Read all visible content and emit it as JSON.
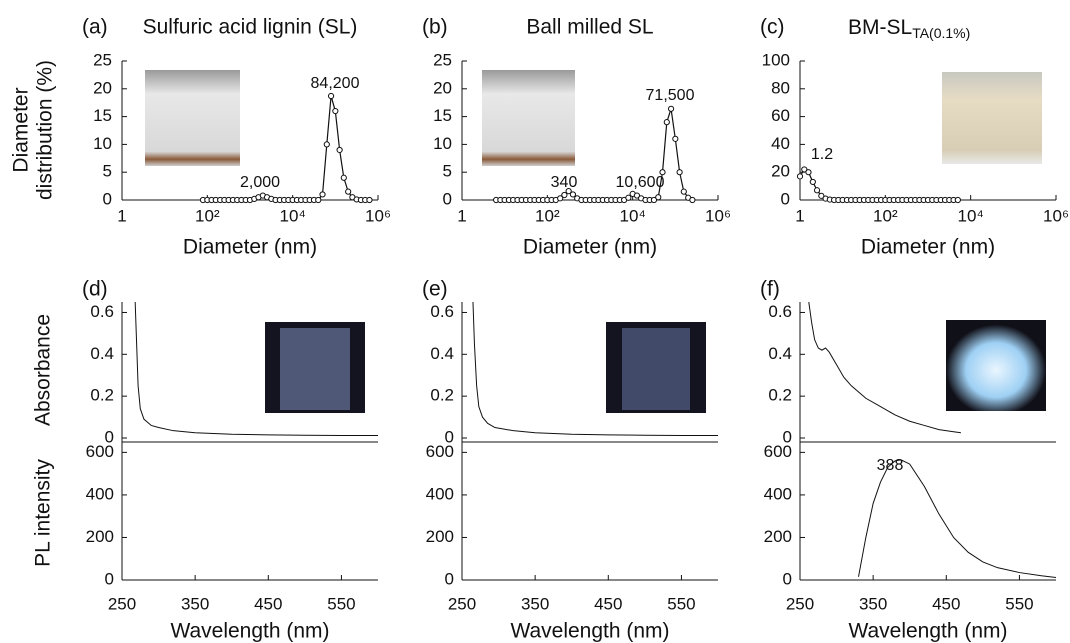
{
  "chart_data": [
    {
      "type": "dls",
      "label": "(a)",
      "title": "Sulfuric acid lignin (SL)",
      "xlabel": "Diameter (nm)",
      "ylabel": [
        "Diameter",
        "distribution (%)"
      ],
      "xscale": "log",
      "xlim": [
        1,
        1000000
      ],
      "xticks": [
        1,
        {
          "value": 100,
          "label": "10²"
        },
        {
          "value": 10000,
          "label": "10⁴"
        },
        {
          "value": 1000000,
          "label": "10⁶"
        }
      ],
      "ylim": [
        0,
        25
      ],
      "yticks": [
        0,
        5,
        10,
        15,
        20,
        25
      ],
      "color": "#111111",
      "x": [
        79,
        100,
        126,
        158,
        200,
        251,
        316,
        398,
        501,
        631,
        794,
        1000,
        1260,
        1580,
        2000,
        2510,
        3160,
        3980,
        5010,
        6310,
        7940,
        10000,
        12600,
        15800,
        20000,
        25100,
        31600,
        39800,
        50100,
        63100,
        79400,
        100000,
        126000,
        158000,
        200000,
        251000,
        316000,
        398000,
        501000,
        631000
      ],
      "values": [
        0,
        0,
        0,
        0,
        0,
        0,
        0,
        0,
        0,
        0,
        0,
        0,
        0.2,
        0.5,
        0.8,
        0.5,
        0.2,
        0,
        0,
        0,
        0,
        0,
        0,
        0,
        0,
        0,
        0,
        0,
        1,
        10,
        18.7,
        16,
        9,
        4,
        1.5,
        0.5,
        0.1,
        0,
        0,
        0
      ],
      "annotations": [
        "2,000",
        "84,200"
      ]
    },
    {
      "type": "dls",
      "label": "(b)",
      "title": "Ball milled SL",
      "xlabel": "Diameter (nm)",
      "xscale": "log",
      "xlim": [
        1,
        1000000
      ],
      "xticks": [
        1,
        {
          "value": 100,
          "label": "10²"
        },
        {
          "value": 10000,
          "label": "10⁴"
        },
        {
          "value": 1000000,
          "label": "10⁶"
        }
      ],
      "ylim": [
        0,
        25
      ],
      "yticks": [
        0,
        5,
        10,
        15,
        20,
        25
      ],
      "color": "#111111",
      "x": [
        6.31,
        7.94,
        10,
        12.6,
        15.8,
        20,
        25.1,
        31.6,
        39.8,
        50.1,
        63.1,
        79.4,
        100,
        126,
        158,
        200,
        251,
        316,
        398,
        501,
        631,
        794,
        1000,
        1260,
        1580,
        2000,
        2510,
        3160,
        3980,
        5010,
        6310,
        7940,
        10000,
        12600,
        15800,
        20000,
        25100,
        31600,
        39800,
        50100,
        63100,
        79400,
        100000,
        126000,
        158000,
        200000,
        251000
      ],
      "values": [
        0,
        0,
        0,
        0,
        0,
        0,
        0,
        0,
        0,
        0,
        0,
        0,
        0,
        0,
        0,
        0.3,
        0.9,
        1.6,
        1.0,
        0.3,
        0,
        0,
        0,
        0,
        0,
        0,
        0,
        0,
        0,
        0,
        0,
        0.4,
        1.1,
        0.8,
        0.3,
        0,
        0,
        0,
        0.5,
        5,
        14,
        16.4,
        11,
        5,
        1.5,
        0.4,
        0
      ],
      "annotations": [
        "340",
        "10,600",
        "71,500"
      ]
    },
    {
      "type": "dls",
      "label": "(c)",
      "title": "BM-SL",
      "title_subscript": "TA(0.1%)",
      "xlabel": "Diameter (nm)",
      "xscale": "log",
      "xlim": [
        1,
        1000000
      ],
      "xticks": [
        1,
        {
          "value": 100,
          "label": "10²"
        },
        {
          "value": 10000,
          "label": "10⁴"
        },
        {
          "value": 1000000,
          "label": "10⁶"
        }
      ],
      "ylim": [
        0,
        100
      ],
      "yticks": [
        0,
        20,
        40,
        60,
        80,
        100
      ],
      "color": "#111111",
      "x": [
        1,
        1.26,
        1.58,
        2,
        2.51,
        3.16,
        3.98,
        5.01,
        6.31,
        7.94,
        10,
        12.6,
        15.8,
        20,
        25.1,
        31.6,
        39.8,
        50.1,
        63.1,
        79.4,
        100,
        126,
        158,
        200,
        251,
        316,
        398,
        501,
        631,
        794,
        1000,
        1260,
        1580,
        2000,
        2510,
        3160,
        3980,
        5010
      ],
      "values": [
        17,
        22,
        20,
        13,
        7,
        3,
        1,
        0.3,
        0,
        0,
        0,
        0,
        0,
        0,
        0,
        0,
        0,
        0,
        0,
        0,
        0,
        0,
        0,
        0,
        0,
        0,
        0,
        0,
        0,
        0,
        0,
        0,
        0,
        0,
        0,
        0,
        0,
        0
      ],
      "annotations": [
        "1.2"
      ]
    },
    {
      "type": "spectra",
      "label": "(d)",
      "xlabel": "Wavelength (nm)",
      "xlim": [
        250,
        600
      ],
      "xticks": [
        250,
        350,
        450,
        550
      ],
      "color": "#111111",
      "panels": [
        {
          "ylabel": "Absorbance",
          "ylim": [
            0,
            0.65
          ],
          "yticks": [
            0,
            0.2,
            0.4,
            0.6
          ],
          "x": [
            268,
            270,
            272,
            275,
            280,
            290,
            300,
            320,
            350,
            400,
            450,
            500,
            550,
            600
          ],
          "values": [
            0.65,
            0.45,
            0.25,
            0.14,
            0.09,
            0.06,
            0.05,
            0.035,
            0.025,
            0.018,
            0.015,
            0.013,
            0.012,
            0.012
          ]
        },
        {
          "ylabel": "PL intensity",
          "ylim": [
            0,
            630
          ],
          "yticks": [
            0,
            200,
            400,
            600
          ],
          "x": [
            330,
            400,
            500
          ],
          "values": [
            0,
            0,
            0
          ]
        }
      ]
    },
    {
      "type": "spectra",
      "label": "(e)",
      "xlabel": "Wavelength (nm)",
      "xlim": [
        250,
        600
      ],
      "xticks": [
        250,
        350,
        450,
        550
      ],
      "color": "#111111",
      "panels": [
        {
          "ylim": [
            0,
            0.65
          ],
          "yticks": [
            0,
            0.2,
            0.4,
            0.6
          ],
          "x": [
            265,
            267,
            270,
            273,
            278,
            285,
            295,
            320,
            350,
            400,
            450,
            500,
            550,
            600
          ],
          "values": [
            0.65,
            0.45,
            0.25,
            0.15,
            0.1,
            0.07,
            0.05,
            0.035,
            0.025,
            0.018,
            0.015,
            0.013,
            0.012,
            0.012
          ]
        },
        {
          "ylim": [
            0,
            630
          ],
          "yticks": [
            0,
            200,
            400,
            600
          ],
          "x": [
            330,
            400,
            500
          ],
          "values": [
            0,
            0,
            0
          ]
        }
      ]
    },
    {
      "type": "spectra",
      "label": "(f)",
      "xlabel": "Wavelength (nm)",
      "xlim": [
        250,
        600
      ],
      "xticks": [
        250,
        350,
        450,
        550
      ],
      "color": "#111111",
      "panels": [
        {
          "ylim": [
            0,
            0.65
          ],
          "yticks": [
            0,
            0.2,
            0.4,
            0.6
          ],
          "x": [
            262,
            266,
            270,
            275,
            280,
            285,
            290,
            300,
            310,
            320,
            340,
            360,
            380,
            400,
            420,
            440,
            460,
            470
          ],
          "values": [
            0.65,
            0.55,
            0.47,
            0.43,
            0.42,
            0.43,
            0.41,
            0.35,
            0.29,
            0.25,
            0.19,
            0.15,
            0.11,
            0.08,
            0.06,
            0.04,
            0.03,
            0.025
          ]
        },
        {
          "ylim": [
            0,
            630
          ],
          "yticks": [
            0,
            200,
            400,
            600
          ],
          "x": [
            330,
            340,
            350,
            360,
            370,
            380,
            388,
            400,
            420,
            440,
            460,
            480,
            500,
            520,
            550,
            580,
            600
          ],
          "values": [
            15,
            200,
            360,
            460,
            530,
            560,
            565,
            545,
            440,
            310,
            200,
            130,
            85,
            58,
            35,
            20,
            12
          ],
          "annotations": [
            "388"
          ]
        }
      ]
    }
  ]
}
